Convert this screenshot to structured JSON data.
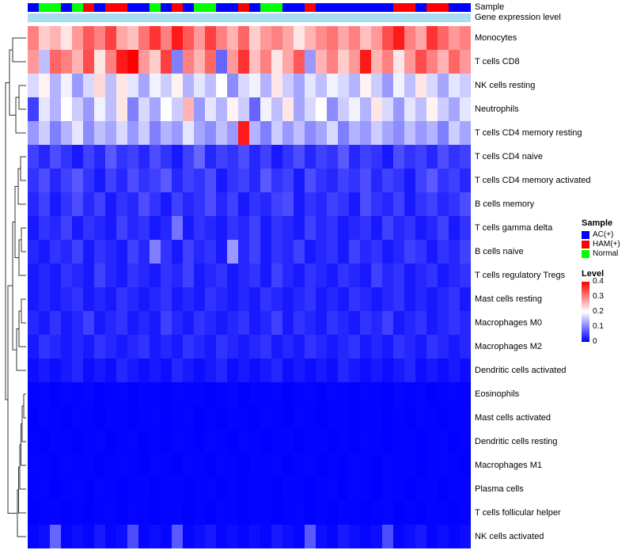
{
  "annotations": {
    "sample_label": "Sample",
    "gene_label": "Gene expression level",
    "gene_bar_color": "#A8DDF0",
    "class_colors": {
      "AC(+)": "#0000FF",
      "HAM(+)": "#FF0000",
      "Normal": "#00FF00"
    },
    "column_classes": [
      "AC(+)",
      "Normal",
      "Normal",
      "AC(+)",
      "Normal",
      "HAM(+)",
      "AC(+)",
      "HAM(+)",
      "HAM(+)",
      "AC(+)",
      "AC(+)",
      "Normal",
      "AC(+)",
      "HAM(+)",
      "AC(+)",
      "Normal",
      "Normal",
      "AC(+)",
      "AC(+)",
      "HAM(+)",
      "AC(+)",
      "Normal",
      "Normal",
      "AC(+)",
      "AC(+)",
      "HAM(+)",
      "AC(+)",
      "AC(+)",
      "AC(+)",
      "AC(+)",
      "AC(+)",
      "AC(+)",
      "AC(+)",
      "HAM(+)",
      "HAM(+)",
      "AC(+)",
      "HAM(+)",
      "HAM(+)",
      "AC(+)",
      "AC(+)"
    ]
  },
  "legend": {
    "sample_title": "Sample",
    "sample_items": [
      {
        "label": "AC(+)",
        "color": "#0000FF"
      },
      {
        "label": "HAM(+)",
        "color": "#FF0000"
      },
      {
        "label": "Normal",
        "color": "#00FF00"
      }
    ],
    "level_title": "Level",
    "level_ticks": [
      "0.4",
      "0.3",
      "0.2",
      "0.1",
      "0"
    ]
  },
  "chart_data": {
    "type": "heatmap",
    "title": "",
    "xlabel": "",
    "ylabel": "",
    "n_columns": 40,
    "legend_position": "right",
    "color_scale": {
      "min": 0,
      "mid": 0.2,
      "max": 0.4,
      "min_color": "#0000FF",
      "mid_color": "#FFFFFF",
      "max_color": "#FF0000"
    },
    "rows": [
      "Monocytes",
      "T cells CD8",
      "NK cells resting",
      "Neutrophils",
      "T cells CD4 memory resting",
      "T cells CD4 naive",
      "T cells CD4 memory activated",
      "B cells memory",
      "T cells gamma delta",
      "B cells naive",
      "T cells regulatory  Tregs",
      "Mast cells resting",
      "Macrophages M0",
      "Macrophages M2",
      "Dendritic cells activated",
      "Eosinophils",
      "Mast cells activated",
      "Dendritic cells resting",
      "Macrophages M1",
      "Plasma cells",
      "T cells follicular helper",
      "NK cells activated"
    ],
    "values": [
      [
        0.3,
        0.24,
        0.26,
        0.22,
        0.28,
        0.33,
        0.3,
        0.35,
        0.27,
        0.25,
        0.31,
        0.36,
        0.3,
        0.38,
        0.33,
        0.28,
        0.35,
        0.3,
        0.26,
        0.32,
        0.24,
        0.28,
        0.3,
        0.27,
        0.22,
        0.26,
        0.29,
        0.31,
        0.27,
        0.3,
        0.25,
        0.28,
        0.34,
        0.38,
        0.3,
        0.27,
        0.36,
        0.32,
        0.28,
        0.3
      ],
      [
        0.28,
        0.15,
        0.32,
        0.3,
        0.26,
        0.34,
        0.22,
        0.3,
        0.38,
        0.4,
        0.28,
        0.24,
        0.35,
        0.1,
        0.3,
        0.26,
        0.32,
        0.08,
        0.28,
        0.36,
        0.25,
        0.3,
        0.22,
        0.27,
        0.33,
        0.12,
        0.26,
        0.3,
        0.24,
        0.28,
        0.38,
        0.26,
        0.3,
        0.22,
        0.28,
        0.34,
        0.3,
        0.26,
        0.32,
        0.28
      ],
      [
        0.17,
        0.21,
        0.14,
        0.19,
        0.12,
        0.17,
        0.23,
        0.15,
        0.22,
        0.18,
        0.13,
        0.19,
        0.16,
        0.21,
        0.14,
        0.18,
        0.15,
        0.2,
        0.11,
        0.17,
        0.19,
        0.14,
        0.22,
        0.16,
        0.13,
        0.18,
        0.15,
        0.19,
        0.17,
        0.14,
        0.21,
        0.16,
        0.12,
        0.19,
        0.15,
        0.22,
        0.17,
        0.13,
        0.18,
        0.16
      ],
      [
        0.05,
        0.18,
        0.14,
        0.2,
        0.16,
        0.12,
        0.19,
        0.15,
        0.22,
        0.1,
        0.17,
        0.13,
        0.2,
        0.16,
        0.26,
        0.12,
        0.18,
        0.14,
        0.21,
        0.16,
        0.08,
        0.19,
        0.15,
        0.22,
        0.13,
        0.17,
        0.2,
        0.11,
        0.16,
        0.19,
        0.14,
        0.22,
        0.17,
        0.12,
        0.18,
        0.15,
        0.21,
        0.16,
        0.13,
        0.18
      ],
      [
        0.12,
        0.16,
        0.1,
        0.14,
        0.18,
        0.11,
        0.15,
        0.13,
        0.17,
        0.12,
        0.16,
        0.1,
        0.14,
        0.12,
        0.18,
        0.13,
        0.11,
        0.15,
        0.12,
        0.38,
        0.14,
        0.1,
        0.16,
        0.12,
        0.15,
        0.11,
        0.13,
        0.17,
        0.1,
        0.14,
        0.12,
        0.16,
        0.13,
        0.11,
        0.15,
        0.12,
        0.14,
        0.1,
        0.16,
        0.13
      ],
      [
        0.05,
        0.03,
        0.06,
        0.04,
        0.02,
        0.05,
        0.03,
        0.07,
        0.04,
        0.05,
        0.03,
        0.06,
        0.04,
        0.02,
        0.05,
        0.08,
        0.03,
        0.05,
        0.04,
        0.06,
        0.03,
        0.05,
        0.02,
        0.04,
        0.06,
        0.03,
        0.05,
        0.04,
        0.07,
        0.03,
        0.05,
        0.04,
        0.02,
        0.06,
        0.04,
        0.05,
        0.03,
        0.06,
        0.04,
        0.05
      ],
      [
        0.04,
        0.06,
        0.03,
        0.05,
        0.07,
        0.04,
        0.02,
        0.05,
        0.03,
        0.06,
        0.04,
        0.05,
        0.07,
        0.03,
        0.05,
        0.04,
        0.06,
        0.02,
        0.04,
        0.05,
        0.03,
        0.07,
        0.04,
        0.05,
        0.02,
        0.06,
        0.04,
        0.03,
        0.05,
        0.04,
        0.06,
        0.03,
        0.05,
        0.04,
        0.02,
        0.05,
        0.07,
        0.04,
        0.05,
        0.03
      ],
      [
        0.03,
        0.05,
        0.02,
        0.04,
        0.06,
        0.03,
        0.05,
        0.02,
        0.04,
        0.03,
        0.06,
        0.04,
        0.02,
        0.05,
        0.03,
        0.04,
        0.06,
        0.03,
        0.05,
        0.02,
        0.04,
        0.03,
        0.05,
        0.06,
        0.02,
        0.04,
        0.03,
        0.05,
        0.04,
        0.02,
        0.06,
        0.04,
        0.03,
        0.05,
        0.02,
        0.04,
        0.05,
        0.03,
        0.04,
        0.06
      ],
      [
        0.02,
        0.04,
        0.03,
        0.05,
        0.02,
        0.04,
        0.03,
        0.02,
        0.05,
        0.03,
        0.04,
        0.02,
        0.03,
        0.09,
        0.02,
        0.04,
        0.03,
        0.02,
        0.04,
        0.03,
        0.05,
        0.02,
        0.04,
        0.03,
        0.02,
        0.05,
        0.03,
        0.04,
        0.02,
        0.03,
        0.04,
        0.02,
        0.05,
        0.03,
        0.04,
        0.02,
        0.03,
        0.05,
        0.02,
        0.04
      ],
      [
        0.03,
        0.02,
        0.04,
        0.03,
        0.05,
        0.02,
        0.04,
        0.03,
        0.02,
        0.05,
        0.03,
        0.1,
        0.04,
        0.02,
        0.05,
        0.03,
        0.04,
        0.02,
        0.12,
        0.03,
        0.05,
        0.02,
        0.04,
        0.03,
        0.05,
        0.02,
        0.03,
        0.04,
        0.02,
        0.05,
        0.03,
        0.04,
        0.02,
        0.03,
        0.05,
        0.04,
        0.02,
        0.04,
        0.03,
        0.05
      ],
      [
        0.02,
        0.03,
        0.02,
        0.04,
        0.03,
        0.02,
        0.05,
        0.03,
        0.02,
        0.04,
        0.03,
        0.02,
        0.04,
        0.03,
        0.05,
        0.02,
        0.03,
        0.04,
        0.02,
        0.03,
        0.04,
        0.02,
        0.05,
        0.03,
        0.02,
        0.04,
        0.03,
        0.02,
        0.04,
        0.03,
        0.02,
        0.05,
        0.03,
        0.04,
        0.02,
        0.03,
        0.04,
        0.02,
        0.03,
        0.04
      ],
      [
        0.02,
        0.03,
        0.02,
        0.03,
        0.04,
        0.02,
        0.03,
        0.02,
        0.04,
        0.03,
        0.02,
        0.03,
        0.04,
        0.02,
        0.03,
        0.02,
        0.04,
        0.03,
        0.02,
        0.03,
        0.02,
        0.04,
        0.03,
        0.02,
        0.03,
        0.04,
        0.02,
        0.03,
        0.02,
        0.04,
        0.03,
        0.02,
        0.03,
        0.04,
        0.02,
        0.03,
        0.02,
        0.03,
        0.04,
        0.02
      ],
      [
        0.03,
        0.02,
        0.04,
        0.02,
        0.03,
        0.05,
        0.02,
        0.03,
        0.04,
        0.02,
        0.03,
        0.02,
        0.05,
        0.03,
        0.02,
        0.04,
        0.03,
        0.02,
        0.03,
        0.04,
        0.02,
        0.03,
        0.05,
        0.02,
        0.04,
        0.03,
        0.02,
        0.04,
        0.03,
        0.02,
        0.04,
        0.03,
        0.05,
        0.02,
        0.03,
        0.04,
        0.02,
        0.03,
        0.04,
        0.03
      ],
      [
        0.02,
        0.04,
        0.03,
        0.02,
        0.03,
        0.02,
        0.04,
        0.03,
        0.02,
        0.03,
        0.04,
        0.02,
        0.03,
        0.02,
        0.04,
        0.03,
        0.02,
        0.04,
        0.03,
        0.02,
        0.03,
        0.04,
        0.02,
        0.03,
        0.02,
        0.04,
        0.03,
        0.02,
        0.03,
        0.04,
        0.02,
        0.03,
        0.02,
        0.04,
        0.03,
        0.02,
        0.04,
        0.03,
        0.02,
        0.03
      ],
      [
        0.01,
        0.02,
        0.01,
        0.02,
        0.03,
        0.01,
        0.02,
        0.01,
        0.03,
        0.02,
        0.01,
        0.02,
        0.01,
        0.03,
        0.02,
        0.01,
        0.02,
        0.03,
        0.01,
        0.02,
        0.01,
        0.02,
        0.03,
        0.01,
        0.02,
        0.01,
        0.02,
        0.01,
        0.03,
        0.02,
        0.01,
        0.02,
        0.01,
        0.02,
        0.03,
        0.01,
        0.02,
        0.01,
        0.02,
        0.01
      ],
      [
        0.002,
        0.004,
        0.001,
        0.003,
        0.002,
        0.005,
        0.001,
        0.002,
        0.004,
        0.001,
        0.003,
        0.002,
        0.001,
        0.004,
        0.002,
        0.003,
        0.001,
        0.002,
        0.005,
        0.001,
        0.003,
        0.002,
        0.004,
        0.001,
        0.002,
        0.003,
        0.001,
        0.004,
        0.002,
        0.001,
        0.003,
        0.002,
        0.001,
        0.005,
        0.002,
        0.003,
        0.001,
        0.002,
        0.004,
        0.002
      ],
      [
        0.001,
        0.003,
        0.002,
        0.001,
        0.004,
        0.002,
        0.001,
        0.003,
        0.002,
        0.001,
        0.002,
        0.004,
        0.001,
        0.002,
        0.003,
        0.001,
        0.002,
        0.001,
        0.003,
        0.002,
        0.001,
        0.004,
        0.002,
        0.001,
        0.003,
        0.002,
        0.001,
        0.002,
        0.004,
        0.001,
        0.002,
        0.003,
        0.001,
        0.002,
        0.001,
        0.003,
        0.002,
        0.001,
        0.002,
        0.003
      ],
      [
        0.002,
        0.001,
        0.003,
        0.002,
        0.001,
        0.002,
        0.004,
        0.001,
        0.002,
        0.003,
        0.001,
        0.002,
        0.001,
        0.003,
        0.002,
        0.001,
        0.004,
        0.002,
        0.001,
        0.003,
        0.002,
        0.001,
        0.002,
        0.003,
        0.001,
        0.002,
        0.004,
        0.001,
        0.002,
        0.001,
        0.003,
        0.002,
        0.001,
        0.002,
        0.003,
        0.001,
        0.002,
        0.004,
        0.001,
        0.002
      ],
      [
        0.003,
        0.002,
        0.001,
        0.004,
        0.002,
        0.003,
        0.001,
        0.002,
        0.003,
        0.002,
        0.001,
        0.003,
        0.002,
        0.001,
        0.004,
        0.002,
        0.001,
        0.003,
        0.002,
        0.001,
        0.003,
        0.002,
        0.004,
        0.001,
        0.002,
        0.003,
        0.001,
        0.002,
        0.001,
        0.003,
        0.002,
        0.001,
        0.004,
        0.002,
        0.003,
        0.001,
        0.002,
        0.003,
        0.002,
        0.001
      ],
      [
        0.002,
        0.003,
        0.001,
        0.002,
        0.004,
        0.001,
        0.003,
        0.002,
        0.001,
        0.002,
        0.003,
        0.001,
        0.002,
        0.004,
        0.001,
        0.002,
        0.003,
        0.001,
        0.002,
        0.001,
        0.004,
        0.002,
        0.001,
        0.003,
        0.002,
        0.001,
        0.002,
        0.003,
        0.001,
        0.004,
        0.002,
        0.001,
        0.003,
        0.002,
        0.001,
        0.002,
        0.003,
        0.001,
        0.002,
        0.003
      ],
      [
        0.001,
        0.002,
        0.003,
        0.001,
        0.002,
        0.001,
        0.002,
        0.004,
        0.001,
        0.003,
        0.002,
        0.001,
        0.002,
        0.003,
        0.001,
        0.002,
        0.001,
        0.003,
        0.002,
        0.001,
        0.002,
        0.003,
        0.001,
        0.002,
        0.004,
        0.001,
        0.002,
        0.001,
        0.003,
        0.002,
        0.001,
        0.002,
        0.003,
        0.001,
        0.002,
        0.001,
        0.004,
        0.002,
        0.001,
        0.002
      ],
      [
        0.005,
        0.01,
        0.08,
        0.005,
        0.01,
        0.005,
        0.02,
        0.005,
        0.01,
        0.06,
        0.005,
        0.01,
        0.005,
        0.07,
        0.005,
        0.01,
        0.02,
        0.005,
        0.01,
        0.005,
        0.01,
        0.005,
        0.02,
        0.01,
        0.005,
        0.07,
        0.01,
        0.005,
        0.02,
        0.01,
        0.005,
        0.01,
        0.06,
        0.005,
        0.01,
        0.02,
        0.005,
        0.01,
        0.005,
        0.01
      ]
    ]
  }
}
